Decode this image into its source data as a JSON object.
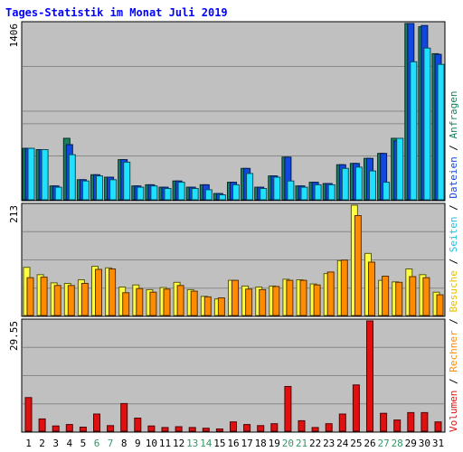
{
  "title": "Tages-Statistik im Monat Juli 2019",
  "colors": {
    "background": "#c0c0c0",
    "title": "#0000ff",
    "anfragen": "#188060",
    "dateien": "#1048e0",
    "seiten": "#20e0ff",
    "besuche": "#ffff40",
    "rechner": "#ff8c00",
    "volumen": "#e01010",
    "weekend": "#339966"
  },
  "legend": {
    "items": [
      {
        "label": "Volumen",
        "color": "#e01010"
      },
      {
        "label": "Rechner",
        "color": "#ff8c00"
      },
      {
        "label": "Besuche",
        "color": "#e8c000"
      },
      {
        "label": "Seiten",
        "color": "#20c0e0"
      },
      {
        "label": "Dateien",
        "color": "#1048e0"
      },
      {
        "label": "Anfragen",
        "color": "#188060"
      }
    ],
    "separator": " / "
  },
  "chart_data": [
    {
      "type": "bar",
      "panel": "anfragen-dateien-seiten",
      "categories": [
        "1",
        "2",
        "3",
        "4",
        "5",
        "6",
        "7",
        "8",
        "9",
        "10",
        "11",
        "12",
        "13",
        "14",
        "15",
        "16",
        "17",
        "18",
        "19",
        "20",
        "21",
        "22",
        "23",
        "24",
        "25",
        "26",
        "27",
        "28",
        "29",
        "30",
        "31"
      ],
      "weekend_days": [
        "6",
        "7",
        "13",
        "14",
        "20",
        "21",
        "27",
        "28"
      ],
      "ymax_label": "1406",
      "ylim": [
        0,
        1406
      ],
      "series": [
        {
          "key": "anfragen",
          "values": [
            410,
            400,
            110,
            490,
            160,
            200,
            180,
            320,
            110,
            120,
            100,
            150,
            100,
            120,
            50,
            140,
            250,
            100,
            190,
            340,
            110,
            140,
            130,
            280,
            290,
            330,
            370,
            490,
            1406,
            1380,
            1165
          ]
        },
        {
          "key": "dateien",
          "values": [
            410,
            400,
            110,
            440,
            160,
            200,
            180,
            320,
            110,
            120,
            100,
            150,
            100,
            120,
            50,
            140,
            250,
            100,
            190,
            340,
            110,
            140,
            130,
            280,
            290,
            330,
            370,
            470,
            1406,
            1390,
            1160
          ]
        },
        {
          "key": "seiten",
          "values": [
            410,
            400,
            100,
            360,
            150,
            190,
            160,
            300,
            100,
            110,
            90,
            140,
            90,
            80,
            40,
            120,
            210,
            90,
            180,
            150,
            100,
            120,
            120,
            250,
            260,
            230,
            140,
            490,
            1100,
            1210,
            1080
          ]
        }
      ]
    },
    {
      "type": "bar",
      "panel": "besuche-rechner",
      "categories": [
        "1",
        "2",
        "3",
        "4",
        "5",
        "6",
        "7",
        "8",
        "9",
        "10",
        "11",
        "12",
        "13",
        "14",
        "15",
        "16",
        "17",
        "18",
        "19",
        "20",
        "21",
        "22",
        "23",
        "24",
        "25",
        "26",
        "27",
        "28",
        "29",
        "30",
        "31"
      ],
      "ymax_label": "213",
      "ylim": [
        0,
        213
      ],
      "series": [
        {
          "key": "besuche",
          "values": [
            93,
            79,
            63,
            62,
            69,
            95,
            92,
            55,
            59,
            50,
            54,
            64,
            50,
            37,
            32,
            68,
            57,
            55,
            57,
            70,
            69,
            61,
            81,
            106,
            213,
            120,
            68,
            65,
            90,
            79,
            45
          ]
        },
        {
          "key": "rechner",
          "values": [
            73,
            74,
            58,
            58,
            62,
            89,
            90,
            44,
            52,
            45,
            51,
            58,
            47,
            36,
            34,
            68,
            51,
            50,
            56,
            68,
            68,
            59,
            84,
            107,
            193,
            103,
            76,
            64,
            75,
            73,
            40
          ]
        }
      ]
    },
    {
      "type": "bar",
      "panel": "volumen",
      "categories": [
        "1",
        "2",
        "3",
        "4",
        "5",
        "6",
        "7",
        "8",
        "9",
        "10",
        "11",
        "12",
        "13",
        "14",
        "15",
        "16",
        "17",
        "18",
        "19",
        "20",
        "21",
        "22",
        "23",
        "24",
        "25",
        "26",
        "27",
        "28",
        "29",
        "30",
        "31"
      ],
      "ymax_label": "29.55",
      "ylim": [
        0,
        29.55
      ],
      "series": [
        {
          "key": "volumen",
          "values": [
            9.0,
            3.3,
            1.4,
            1.8,
            1.1,
            4.6,
            1.5,
            7.4,
            3.5,
            1.4,
            1.0,
            1.2,
            1.0,
            0.8,
            0.6,
            2.5,
            1.8,
            1.5,
            2.0,
            12.0,
            2.8,
            1.0,
            2.0,
            4.6,
            12.4,
            29.55,
            4.8,
            3.0,
            5.0,
            5.0,
            2.5
          ]
        }
      ]
    }
  ]
}
